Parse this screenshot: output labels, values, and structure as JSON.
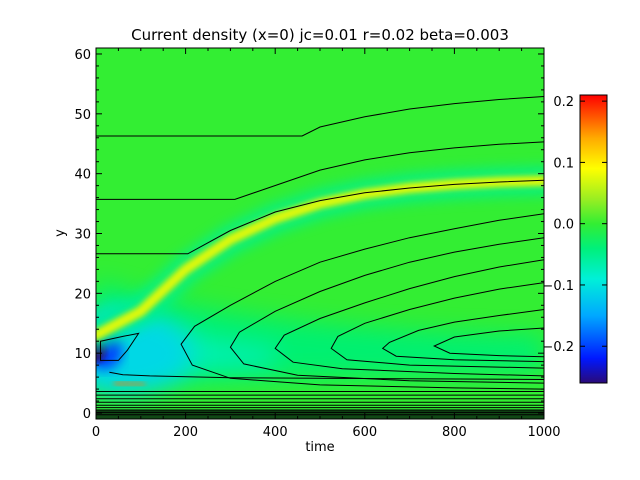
{
  "chart_data": {
    "type": "heatmap",
    "title": "Current density (x=0) jc=0.01 r=0.02 beta=0.003",
    "xlabel": "time",
    "ylabel": "y",
    "xlim": [
      0,
      1000
    ],
    "ylim": [
      -1,
      61
    ],
    "x_ticks": [
      0,
      200,
      400,
      600,
      800,
      1000
    ],
    "y_ticks": [
      0,
      10,
      20,
      30,
      40,
      50,
      60
    ],
    "colorbar": {
      "range": [
        -0.26,
        0.21
      ],
      "ticks": [
        {
          "value": 0.2,
          "label": "0.2"
        },
        {
          "value": 0.1,
          "label": "0.1"
        },
        {
          "value": 0.0,
          "label": "0.0"
        },
        {
          "value": -0.1,
          "label": "−0.1"
        },
        {
          "value": -0.2,
          "label": "−0.2"
        }
      ]
    },
    "colormap_stops": [
      {
        "value": -0.26,
        "color": "#2a0a78"
      },
      {
        "value": -0.22,
        "color": "#0018ff"
      },
      {
        "value": -0.15,
        "color": "#00a8ff"
      },
      {
        "value": -0.09,
        "color": "#00f0d8"
      },
      {
        "value": -0.04,
        "color": "#00f07a"
      },
      {
        "value": 0.0,
        "color": "#33ee33"
      },
      {
        "value": 0.04,
        "color": "#99ee22"
      },
      {
        "value": 0.09,
        "color": "#ffff00"
      },
      {
        "value": 0.14,
        "color": "#ffaa00"
      },
      {
        "value": 0.21,
        "color": "#ff0000"
      }
    ],
    "current_sheet_ridge": {
      "description_values": "ridge of positive current density (y position vs time)",
      "points": [
        [
          0,
          13
        ],
        [
          100,
          17
        ],
        [
          200,
          24
        ],
        [
          300,
          29
        ],
        [
          400,
          32.5
        ],
        [
          500,
          35
        ],
        [
          600,
          36.6
        ],
        [
          700,
          37.6
        ],
        [
          800,
          38.2
        ],
        [
          900,
          38.6
        ],
        [
          1000,
          38.8
        ]
      ],
      "peak_value": 0.09
    },
    "contour_lines": [
      {
        "points": [
          [
            0,
            46.3
          ],
          [
            460,
            46.3
          ],
          [
            500,
            47.8
          ],
          [
            600,
            49.5
          ],
          [
            700,
            50.8
          ],
          [
            800,
            51.7
          ],
          [
            900,
            52.4
          ],
          [
            1000,
            52.9
          ]
        ]
      },
      {
        "points": [
          [
            0,
            35.7
          ],
          [
            310,
            35.7
          ],
          [
            380,
            37.5
          ],
          [
            500,
            40.6
          ],
          [
            600,
            42.3
          ],
          [
            700,
            43.5
          ],
          [
            800,
            44.3
          ],
          [
            900,
            44.9
          ],
          [
            1000,
            45.3
          ]
        ]
      },
      {
        "points": [
          [
            0,
            26.6
          ],
          [
            205,
            26.6
          ],
          [
            300,
            30.5
          ],
          [
            400,
            33.6
          ],
          [
            500,
            35.5
          ],
          [
            600,
            36.8
          ],
          [
            700,
            37.6
          ],
          [
            800,
            38.2
          ],
          [
            900,
            38.6
          ],
          [
            1000,
            38.9
          ]
        ]
      },
      {
        "points": [
          [
            1000,
            33.3
          ],
          [
            900,
            32.2
          ],
          [
            800,
            30.8
          ],
          [
            700,
            29.3
          ],
          [
            600,
            27.4
          ],
          [
            500,
            25.2
          ],
          [
            400,
            22.0
          ],
          [
            300,
            18.0
          ],
          [
            220,
            14.5
          ],
          [
            190,
            11.5
          ],
          [
            215,
            8.0
          ],
          [
            300,
            5.8
          ],
          [
            500,
            4.7
          ],
          [
            800,
            4.2
          ],
          [
            1000,
            4.0
          ]
        ]
      },
      {
        "points": [
          [
            1000,
            29.3
          ],
          [
            900,
            28.2
          ],
          [
            800,
            26.9
          ],
          [
            700,
            25.2
          ],
          [
            600,
            23.0
          ],
          [
            500,
            20.3
          ],
          [
            400,
            17.0
          ],
          [
            320,
            13.5
          ],
          [
            300,
            11.0
          ],
          [
            330,
            8.2
          ],
          [
            450,
            6.3
          ],
          [
            700,
            5.4
          ],
          [
            1000,
            5.0
          ]
        ]
      },
      {
        "points": [
          [
            1000,
            25.6
          ],
          [
            900,
            24.4
          ],
          [
            800,
            22.8
          ],
          [
            700,
            20.8
          ],
          [
            600,
            18.4
          ],
          [
            500,
            15.8
          ],
          [
            420,
            13.0
          ],
          [
            400,
            10.8
          ],
          [
            440,
            8.5
          ],
          [
            550,
            7.4
          ],
          [
            800,
            6.6
          ],
          [
            1000,
            6.2
          ]
        ]
      },
      {
        "points": [
          [
            1000,
            21.8
          ],
          [
            900,
            20.7
          ],
          [
            800,
            19.2
          ],
          [
            700,
            17.3
          ],
          [
            600,
            15.0
          ],
          [
            540,
            12.8
          ],
          [
            525,
            10.8
          ],
          [
            560,
            8.9
          ],
          [
            700,
            8.0
          ],
          [
            1000,
            7.5
          ]
        ]
      },
      {
        "points": [
          [
            1000,
            17.3
          ],
          [
            900,
            16.3
          ],
          [
            800,
            15.2
          ],
          [
            720,
            13.8
          ],
          [
            655,
            11.8
          ],
          [
            640,
            10.8
          ],
          [
            670,
            9.5
          ],
          [
            800,
            8.9
          ],
          [
            1000,
            8.6
          ]
        ]
      },
      {
        "points": [
          [
            1000,
            14.2
          ],
          [
            900,
            13.7
          ],
          [
            800,
            12.7
          ],
          [
            755,
            11.2
          ],
          [
            790,
            10.0
          ],
          [
            900,
            9.6
          ],
          [
            1000,
            9.4
          ]
        ]
      },
      {
        "points": [
          [
            10,
            12
          ],
          [
            60,
            12.8
          ],
          [
            95,
            13.3
          ],
          [
            70,
            10.5
          ],
          [
            50,
            8.8
          ],
          [
            10,
            8.8
          ]
        ],
        "closed": true
      },
      {
        "points": [
          [
            30,
            6.8
          ],
          [
            60,
            6.4
          ],
          [
            120,
            6.2
          ],
          [
            300,
            5.9
          ],
          [
            1000,
            5.6
          ]
        ]
      },
      {
        "points": [
          [
            0,
            3.6
          ],
          [
            1000,
            3.6
          ]
        ]
      },
      {
        "points": [
          [
            0,
            3.0
          ],
          [
            1000,
            3.0
          ]
        ]
      },
      {
        "points": [
          [
            0,
            2.4
          ],
          [
            1000,
            2.4
          ]
        ]
      },
      {
        "points": [
          [
            0,
            1.8
          ],
          [
            1000,
            1.8
          ]
        ]
      },
      {
        "points": [
          [
            0,
            1.3
          ],
          [
            1000,
            1.3
          ]
        ]
      },
      {
        "points": [
          [
            0,
            0.9
          ],
          [
            1000,
            0.9
          ]
        ]
      },
      {
        "points": [
          [
            0,
            0.5
          ],
          [
            1000,
            0.5
          ]
        ]
      },
      {
        "points": [
          [
            0,
            0.1
          ],
          [
            1000,
            0.1
          ]
        ]
      },
      {
        "points": [
          [
            0,
            -0.3
          ],
          [
            1000,
            -0.3
          ]
        ]
      }
    ]
  }
}
